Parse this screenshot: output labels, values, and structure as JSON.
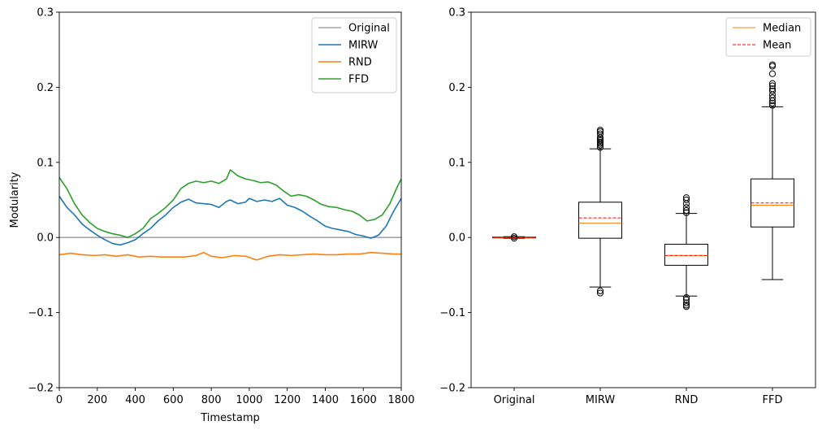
{
  "chart_data": [
    {
      "type": "line",
      "xlabel": "Timestamp",
      "ylabel": "Modularity",
      "xlim": [
        0,
        1800
      ],
      "ylim": [
        -0.2,
        0.3
      ],
      "xticks": [
        "0",
        "200",
        "400",
        "600",
        "800",
        "1000",
        "1200",
        "1400",
        "1600",
        "1800"
      ],
      "yticks": [
        "−0.2",
        "−0.1",
        "0.0",
        "0.1",
        "0.2",
        "0.3"
      ],
      "legend_position": "top-right",
      "series": [
        {
          "name": "Original",
          "color": "#a6a6a6",
          "x": [
            0,
            1800
          ],
          "y": [
            0.0,
            0.0
          ]
        },
        {
          "name": "MIRW",
          "color": "#1f77b4",
          "x": [
            0,
            40,
            80,
            120,
            160,
            200,
            240,
            280,
            320,
            360,
            400,
            440,
            480,
            520,
            560,
            600,
            640,
            680,
            720,
            760,
            800,
            840,
            880,
            900,
            940,
            980,
            1000,
            1040,
            1080,
            1120,
            1160,
            1200,
            1240,
            1280,
            1320,
            1360,
            1400,
            1440,
            1480,
            1520,
            1560,
            1600,
            1640,
            1680,
            1720,
            1760,
            1800
          ],
          "y": [
            0.055,
            0.04,
            0.03,
            0.018,
            0.01,
            0.003,
            -0.003,
            -0.008,
            -0.01,
            -0.007,
            -0.003,
            0.005,
            0.012,
            0.022,
            0.03,
            0.04,
            0.047,
            0.051,
            0.046,
            0.045,
            0.044,
            0.04,
            0.048,
            0.05,
            0.045,
            0.047,
            0.052,
            0.048,
            0.05,
            0.048,
            0.052,
            0.043,
            0.04,
            0.035,
            0.028,
            0.022,
            0.015,
            0.012,
            0.01,
            0.008,
            0.004,
            0.002,
            -0.001,
            0.003,
            0.015,
            0.035,
            0.052
          ]
        },
        {
          "name": "RND",
          "color": "#ff7f0e",
          "x": [
            0,
            60,
            120,
            180,
            240,
            300,
            360,
            420,
            480,
            540,
            600,
            660,
            720,
            760,
            800,
            860,
            920,
            980,
            1040,
            1100,
            1160,
            1220,
            1280,
            1340,
            1400,
            1460,
            1520,
            1580,
            1640,
            1700,
            1760,
            1800
          ],
          "y": [
            -0.023,
            -0.021,
            -0.023,
            -0.024,
            -0.023,
            -0.025,
            -0.023,
            -0.026,
            -0.025,
            -0.026,
            -0.026,
            -0.026,
            -0.024,
            -0.02,
            -0.025,
            -0.027,
            -0.024,
            -0.025,
            -0.03,
            -0.025,
            -0.023,
            -0.024,
            -0.023,
            -0.022,
            -0.023,
            -0.023,
            -0.022,
            -0.022,
            -0.02,
            -0.021,
            -0.022,
            -0.022
          ]
        },
        {
          "name": "FFD",
          "color": "#2ca02c",
          "x": [
            0,
            40,
            80,
            120,
            160,
            200,
            240,
            280,
            320,
            360,
            400,
            440,
            480,
            520,
            560,
            600,
            640,
            680,
            720,
            760,
            800,
            840,
            880,
            900,
            940,
            980,
            1020,
            1060,
            1100,
            1140,
            1180,
            1220,
            1260,
            1300,
            1340,
            1380,
            1420,
            1460,
            1500,
            1540,
            1580,
            1620,
            1660,
            1700,
            1740,
            1780,
            1800
          ],
          "y": [
            0.08,
            0.065,
            0.045,
            0.03,
            0.02,
            0.012,
            0.008,
            0.005,
            0.003,
            0.0,
            0.005,
            0.012,
            0.025,
            0.032,
            0.04,
            0.05,
            0.065,
            0.072,
            0.075,
            0.073,
            0.075,
            0.072,
            0.078,
            0.09,
            0.082,
            0.078,
            0.076,
            0.073,
            0.074,
            0.07,
            0.062,
            0.055,
            0.057,
            0.055,
            0.05,
            0.044,
            0.041,
            0.04,
            0.037,
            0.035,
            0.03,
            0.022,
            0.024,
            0.03,
            0.045,
            0.068,
            0.078
          ]
        }
      ]
    },
    {
      "type": "box",
      "categories": [
        "Original",
        "MIRW",
        "RND",
        "FFD"
      ],
      "ylim": [
        -0.2,
        0.3
      ],
      "yticks": [
        "−0.2",
        "−0.1",
        "0.0",
        "0.1",
        "0.2",
        "0.3"
      ],
      "legend_position": "top-right",
      "legend": [
        {
          "name": "Median",
          "color": "#ff7f0e",
          "style": "solid"
        },
        {
          "name": "Mean",
          "color": "#ff0000",
          "style": "dashed"
        }
      ],
      "boxes": [
        {
          "category": "Original",
          "whisker_low": -0.001,
          "q1": -0.0005,
          "median": 0.0,
          "mean": 0.0,
          "q3": 0.0005,
          "whisker_high": 0.001,
          "outliers": [
            -0.001,
            0.001
          ]
        },
        {
          "category": "MIRW",
          "whisker_low": -0.066,
          "q1": -0.001,
          "median": 0.019,
          "mean": 0.026,
          "q3": 0.047,
          "whisker_high": 0.118,
          "outliers": [
            -0.071,
            -0.074,
            0.12,
            0.123,
            0.125,
            0.127,
            0.129,
            0.131,
            0.133,
            0.138,
            0.141,
            0.143
          ]
        },
        {
          "category": "RND",
          "whisker_low": -0.078,
          "q1": -0.037,
          "median": -0.024,
          "mean": -0.024,
          "q3": -0.009,
          "whisker_high": 0.032,
          "outliers": [
            -0.08,
            -0.083,
            -0.087,
            -0.09,
            -0.092,
            0.033,
            0.036,
            0.04,
            0.045,
            0.05,
            0.053
          ]
        },
        {
          "category": "FFD",
          "whisker_low": -0.056,
          "q1": 0.014,
          "median": 0.043,
          "mean": 0.046,
          "q3": 0.078,
          "whisker_high": 0.174,
          "outliers": [
            0.176,
            0.179,
            0.182,
            0.186,
            0.19,
            0.195,
            0.198,
            0.202,
            0.205,
            0.218,
            0.228,
            0.23
          ]
        }
      ]
    }
  ]
}
